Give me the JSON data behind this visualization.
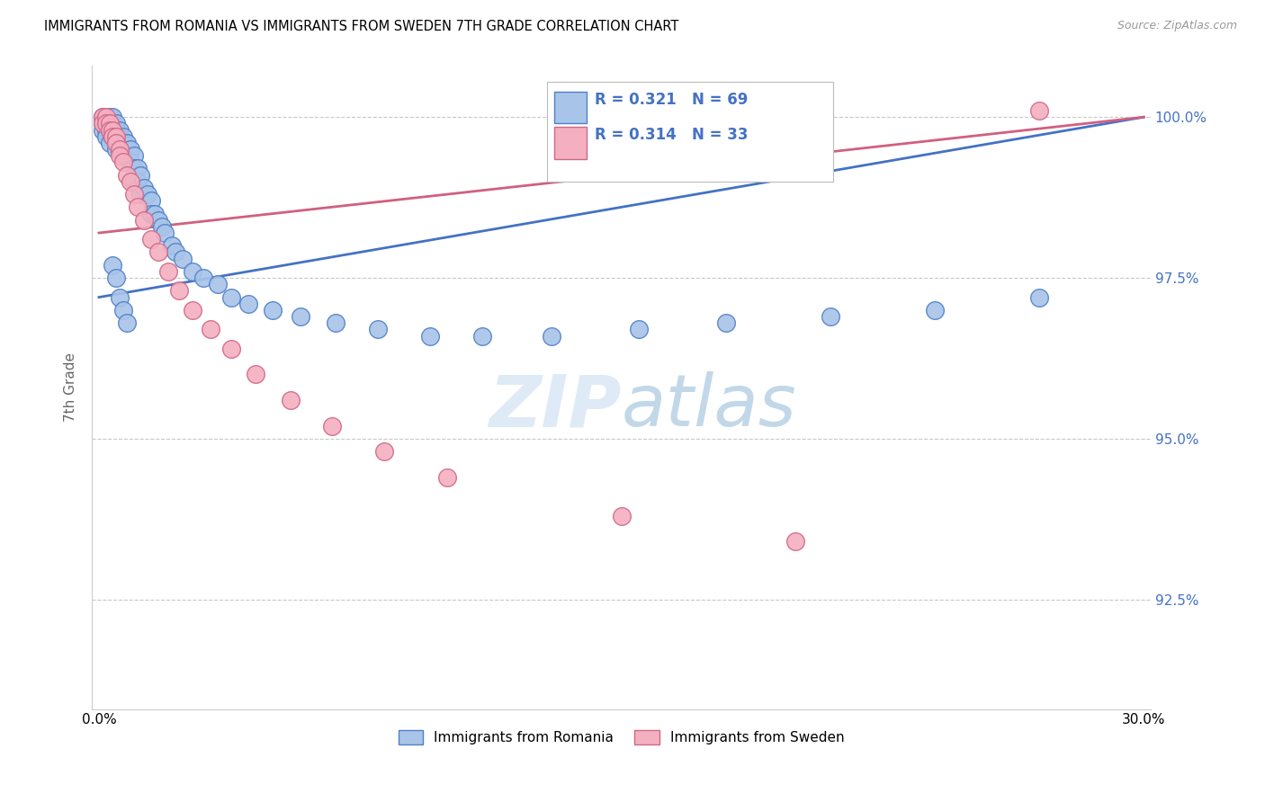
{
  "title": "IMMIGRANTS FROM ROMANIA VS IMMIGRANTS FROM SWEDEN 7TH GRADE CORRELATION CHART",
  "source": "Source: ZipAtlas.com",
  "ylabel": "7th Grade",
  "legend_romania": "Immigrants from Romania",
  "legend_sweden": "Immigrants from Sweden",
  "R_romania": 0.321,
  "N_romania": 69,
  "R_sweden": 0.314,
  "N_sweden": 33,
  "color_romania_fill": "#A8C4E8",
  "color_sweden_fill": "#F4B0C0",
  "color_romania_edge": "#5080C8",
  "color_sweden_edge": "#D06888",
  "color_romania_line": "#4472C4",
  "color_sweden_line": "#D06080",
  "color_right_axis": "#4472C4",
  "xmin": 0.0,
  "xmax": 0.3,
  "ymin": 0.908,
  "ymax": 1.008,
  "yticks": [
    0.925,
    0.95,
    0.975,
    1.0
  ],
  "yticklabels": [
    "92.5%",
    "95.0%",
    "97.5%",
    "100.0%"
  ],
  "romania_x": [
    0.001,
    0.001,
    0.001,
    0.002,
    0.002,
    0.002,
    0.002,
    0.003,
    0.003,
    0.003,
    0.003,
    0.004,
    0.004,
    0.004,
    0.004,
    0.005,
    0.005,
    0.005,
    0.005,
    0.006,
    0.006,
    0.006,
    0.007,
    0.007,
    0.007,
    0.008,
    0.008,
    0.009,
    0.009,
    0.01,
    0.01,
    0.01,
    0.011,
    0.011,
    0.012,
    0.012,
    0.013,
    0.014,
    0.015,
    0.015,
    0.016,
    0.017,
    0.018,
    0.019,
    0.021,
    0.022,
    0.024,
    0.027,
    0.03,
    0.034,
    0.038,
    0.043,
    0.05,
    0.058,
    0.068,
    0.08,
    0.095,
    0.11,
    0.13,
    0.155,
    0.18,
    0.21,
    0.24,
    0.27,
    0.004,
    0.005,
    0.006,
    0.007,
    0.008
  ],
  "romania_y": [
    1.0,
    0.999,
    0.998,
    1.0,
    0.999,
    0.998,
    0.997,
    1.0,
    0.999,
    0.998,
    0.996,
    1.0,
    0.999,
    0.998,
    0.997,
    0.999,
    0.998,
    0.997,
    0.995,
    0.998,
    0.997,
    0.995,
    0.997,
    0.996,
    0.994,
    0.996,
    0.994,
    0.995,
    0.993,
    0.994,
    0.992,
    0.99,
    0.992,
    0.99,
    0.991,
    0.988,
    0.989,
    0.988,
    0.987,
    0.985,
    0.985,
    0.984,
    0.983,
    0.982,
    0.98,
    0.979,
    0.978,
    0.976,
    0.975,
    0.974,
    0.972,
    0.971,
    0.97,
    0.969,
    0.968,
    0.967,
    0.966,
    0.966,
    0.966,
    0.967,
    0.968,
    0.969,
    0.97,
    0.972,
    0.977,
    0.975,
    0.972,
    0.97,
    0.968
  ],
  "sweden_x": [
    0.001,
    0.001,
    0.002,
    0.002,
    0.003,
    0.003,
    0.004,
    0.004,
    0.005,
    0.005,
    0.006,
    0.006,
    0.007,
    0.008,
    0.009,
    0.01,
    0.011,
    0.013,
    0.015,
    0.017,
    0.02,
    0.023,
    0.027,
    0.032,
    0.038,
    0.045,
    0.055,
    0.067,
    0.082,
    0.1,
    0.15,
    0.2,
    0.27
  ],
  "sweden_y": [
    1.0,
    0.999,
    1.0,
    0.999,
    0.999,
    0.998,
    0.998,
    0.997,
    0.997,
    0.996,
    0.995,
    0.994,
    0.993,
    0.991,
    0.99,
    0.988,
    0.986,
    0.984,
    0.981,
    0.979,
    0.976,
    0.973,
    0.97,
    0.967,
    0.964,
    0.96,
    0.956,
    0.952,
    0.948,
    0.944,
    0.938,
    0.934,
    1.001
  ]
}
